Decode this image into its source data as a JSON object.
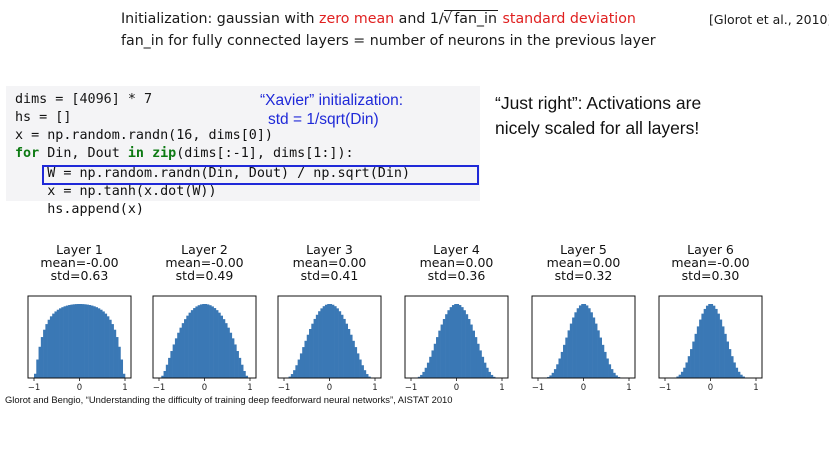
{
  "header": {
    "line1_a": "Initialization: gaussian with ",
    "line1_red1": "zero mean",
    "line1_b": " and 1/",
    "line1_sqrt_arg": "fan_in",
    "line1_c": " ",
    "line1_red2": "standard deviation",
    "reference": "[Glorot et al., 2010]",
    "line2": "fan_in for fully connected layers = number of neurons in the previous layer"
  },
  "code": {
    "line1_a": "dims = [",
    "line1_n": "4096",
    "line1_b": "] * ",
    "line1_m": "7",
    "line2": "hs = []",
    "line3": "x = np.random.randn(16, dims[0])",
    "line4_kw1": "for",
    "line4_a": " Din, Dout ",
    "line4_kw2": "in",
    "line4_b": " ",
    "line4_kw3": "zip",
    "line4_c": "(dims[:-1], dims[1:]):",
    "line5": "    W = np.random.randn(Din, Dout) / np.sqrt(Din)",
    "line6": "    x = np.tanh(x.dot(W))",
    "line7": "    hs.append(x)"
  },
  "notes": {
    "xavier_title": "“Xavier” initialization:",
    "xavier_std": "std = 1/sqrt(Din)"
  },
  "callout": {
    "line1": "“Just right”: Activations are",
    "line2": "nicely scaled for all layers!"
  },
  "colors": {
    "bar": "#3a78b5",
    "highlight_box": "#1f29d8",
    "emphasis_red": "#e02020",
    "keyword_green": "#0d7a13"
  },
  "chart_data": [
    {
      "type": "bar",
      "title_line1": "Layer 1",
      "title_line2": "mean=-0.00",
      "title_line3": "std=0.63",
      "std": 0.63,
      "xlim": [
        -1,
        1
      ],
      "xticks": [
        "−1",
        "0",
        "1"
      ]
    },
    {
      "type": "bar",
      "title_line1": "Layer 2",
      "title_line2": "mean=-0.00",
      "title_line3": "std=0.49",
      "std": 0.49,
      "xlim": [
        -1,
        1
      ],
      "xticks": [
        "−1",
        "0",
        "1"
      ]
    },
    {
      "type": "bar",
      "title_line1": "Layer 3",
      "title_line2": "mean=0.00",
      "title_line3": "std=0.41",
      "std": 0.41,
      "xlim": [
        -1,
        1
      ],
      "xticks": [
        "−1",
        "0",
        "1"
      ]
    },
    {
      "type": "bar",
      "title_line1": "Layer 4",
      "title_line2": "mean=0.00",
      "title_line3": "std=0.36",
      "std": 0.36,
      "xlim": [
        -1,
        1
      ],
      "xticks": [
        "−1",
        "0",
        "1"
      ]
    },
    {
      "type": "bar",
      "title_line1": "Layer 5",
      "title_line2": "mean=0.00",
      "title_line3": "std=0.32",
      "std": 0.32,
      "xlim": [
        -1,
        1
      ],
      "xticks": [
        "−1",
        "0",
        "1"
      ]
    },
    {
      "type": "bar",
      "title_line1": "Layer 6",
      "title_line2": "mean=-0.00",
      "title_line3": "std=0.30",
      "std": 0.3,
      "xlim": [
        -1,
        1
      ],
      "xticks": [
        "−1",
        "0",
        "1"
      ]
    }
  ],
  "citation": "Glorot and Bengio, “Understanding the difficulty of training deep feedforward neural networks”, AISTAT 2010"
}
